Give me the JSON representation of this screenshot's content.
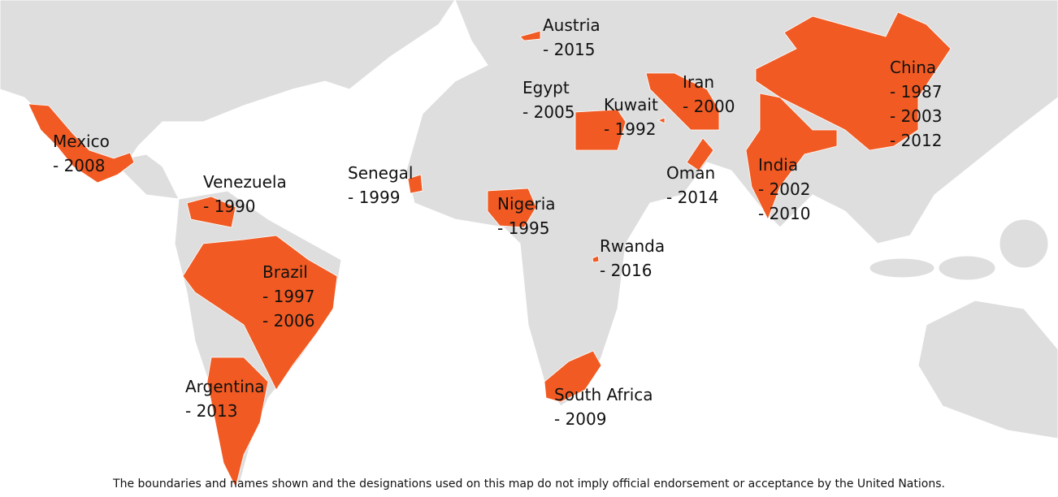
{
  "countries": [
    {
      "name": "Austria",
      "years": [
        "- 2015"
      ]
    },
    {
      "name": "Egypt",
      "years": [
        "- 2005"
      ]
    },
    {
      "name": "Kuwait",
      "years": [
        "- 1992"
      ]
    },
    {
      "name": "Iran",
      "years": [
        "- 2000"
      ]
    },
    {
      "name": "China",
      "years": [
        "- 1987",
        "- 2003",
        "- 2012"
      ]
    },
    {
      "name": "Mexico",
      "years": [
        "- 2008"
      ]
    },
    {
      "name": "Venezuela",
      "years": [
        "- 1990"
      ]
    },
    {
      "name": "Senegal",
      "years": [
        "- 1999"
      ]
    },
    {
      "name": "Nigeria",
      "years": [
        "- 1995"
      ]
    },
    {
      "name": "Oman",
      "years": [
        "- 2014"
      ]
    },
    {
      "name": "India",
      "years": [
        "- 2002",
        "- 2010"
      ]
    },
    {
      "name": "Rwanda",
      "years": [
        "- 2016"
      ]
    },
    {
      "name": "Brazil",
      "years": [
        "- 1997",
        "- 2006"
      ]
    },
    {
      "name": "Argentina",
      "years": [
        "- 2013"
      ]
    },
    {
      "name": "South Africa",
      "years": [
        "- 2009"
      ]
    }
  ],
  "disclaimer": "The boundaries and names shown and the designations used on this map do not imply official endorsement or acceptance by the United Nations."
}
